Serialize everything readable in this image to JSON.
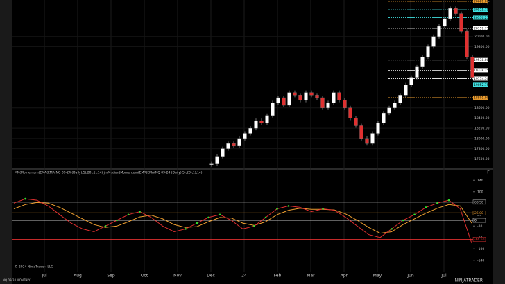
{
  "price_panel": {
    "ylim": [
      17414,
      20716
    ],
    "yticks": [
      {
        "value": 17600,
        "label": "17600.00"
      },
      {
        "value": 17800,
        "label": "17800.00"
      },
      {
        "value": 18000,
        "label": "18000.00"
      },
      {
        "value": 18200,
        "label": "18200.00"
      },
      {
        "value": 18400,
        "label": "18400.00"
      },
      {
        "value": 18600,
        "label": "18600.00"
      },
      {
        "value": 19800,
        "label": "19800.00"
      },
      {
        "value": 20000,
        "label": "20000.00"
      }
    ],
    "closes": [
      17500,
      17650,
      17800,
      17900,
      17850,
      18000,
      18100,
      18200,
      18350,
      18300,
      18450,
      18700,
      18800,
      18650,
      18900,
      18850,
      18750,
      18900,
      18850,
      18800,
      18600,
      18700,
      18900,
      18750,
      18600,
      18400,
      18250,
      18000,
      17900,
      18100,
      18300,
      18500,
      18600,
      18700,
      18850,
      19050,
      19200,
      19400,
      19600,
      19800,
      20000,
      20200,
      20350,
      20550,
      20450,
      20100,
      19600,
      19200
    ],
    "levels": [
      {
        "value": 20689,
        "label": "20689.00",
        "color": "#f0a030"
      },
      {
        "value": 20525.75,
        "label": "20525.75",
        "color": "#40e0e0"
      },
      {
        "value": 20370.25,
        "label": "20370.25",
        "color": "#40e0e0"
      },
      {
        "value": 20159.75,
        "label": "20159.75",
        "color": "#ffffff"
      },
      {
        "value": 19538,
        "label": "19538.00",
        "color": "#ffffff"
      },
      {
        "value": 19338.25,
        "label": "19338.25",
        "color": "#ffffff"
      },
      {
        "value": 19174.5,
        "label": "19174.50",
        "color": "#ffffff"
      },
      {
        "value": 19052.75,
        "label": "19052.75",
        "color": "#40e0e0"
      },
      {
        "value": 18801,
        "label": "18801.00",
        "color": "#f0a030"
      }
    ],
    "button": "F"
  },
  "oscillator_panel": {
    "title": "MN(Momentum(EMA(EMA(NQ 09-24 (Daily),5),20),1),14)  jmMedian(Momentum(EMA(EMA(NQ 09-24 (Daily),5),20),1),14)",
    "ylim": [
      -160,
      160
    ],
    "yticks": [
      140,
      100,
      60,
      20,
      -20,
      -60,
      -100,
      -140
    ],
    "momentum": [
      60,
      75,
      70,
      50,
      20,
      -10,
      -30,
      -40,
      -20,
      0,
      20,
      30,
      10,
      -20,
      -40,
      -30,
      -10,
      10,
      20,
      0,
      -30,
      -20,
      10,
      40,
      50,
      45,
      30,
      40,
      35,
      10,
      -20,
      -50,
      -60,
      -30,
      0,
      20,
      45,
      60,
      70,
      40,
      -80
    ],
    "signal": [
      40,
      55,
      62,
      60,
      45,
      25,
      5,
      -15,
      -25,
      -20,
      -5,
      12,
      18,
      5,
      -15,
      -25,
      -22,
      -5,
      10,
      8,
      -10,
      -18,
      -5,
      20,
      35,
      42,
      38,
      38,
      36,
      22,
      0,
      -25,
      -45,
      -40,
      -15,
      5,
      25,
      42,
      55,
      50,
      -10
    ],
    "levels": [
      {
        "value": 63.5,
        "label": "63.50",
        "color": "#cccccc"
      },
      {
        "value": 26,
        "label": "26.00",
        "color": "#f0a030"
      },
      {
        "value": 0,
        "label": "0",
        "color": "#ffffff"
      },
      {
        "value": -66.5,
        "label": "-66.50",
        "color": "#e03030"
      }
    ],
    "button": "F"
  },
  "time_axis": {
    "months": [
      "Jul",
      "Aug",
      "Sep",
      "Oct",
      "Nov",
      "Dec",
      "24",
      "Feb",
      "Mar",
      "Apr",
      "May",
      "Jun",
      "Jul"
    ]
  },
  "footer": {
    "copyright": "© 2024 NinjaTrader, LLC",
    "instrument": "NQ 09-24 MONTHLY",
    "logo": "NINJATRADER"
  }
}
